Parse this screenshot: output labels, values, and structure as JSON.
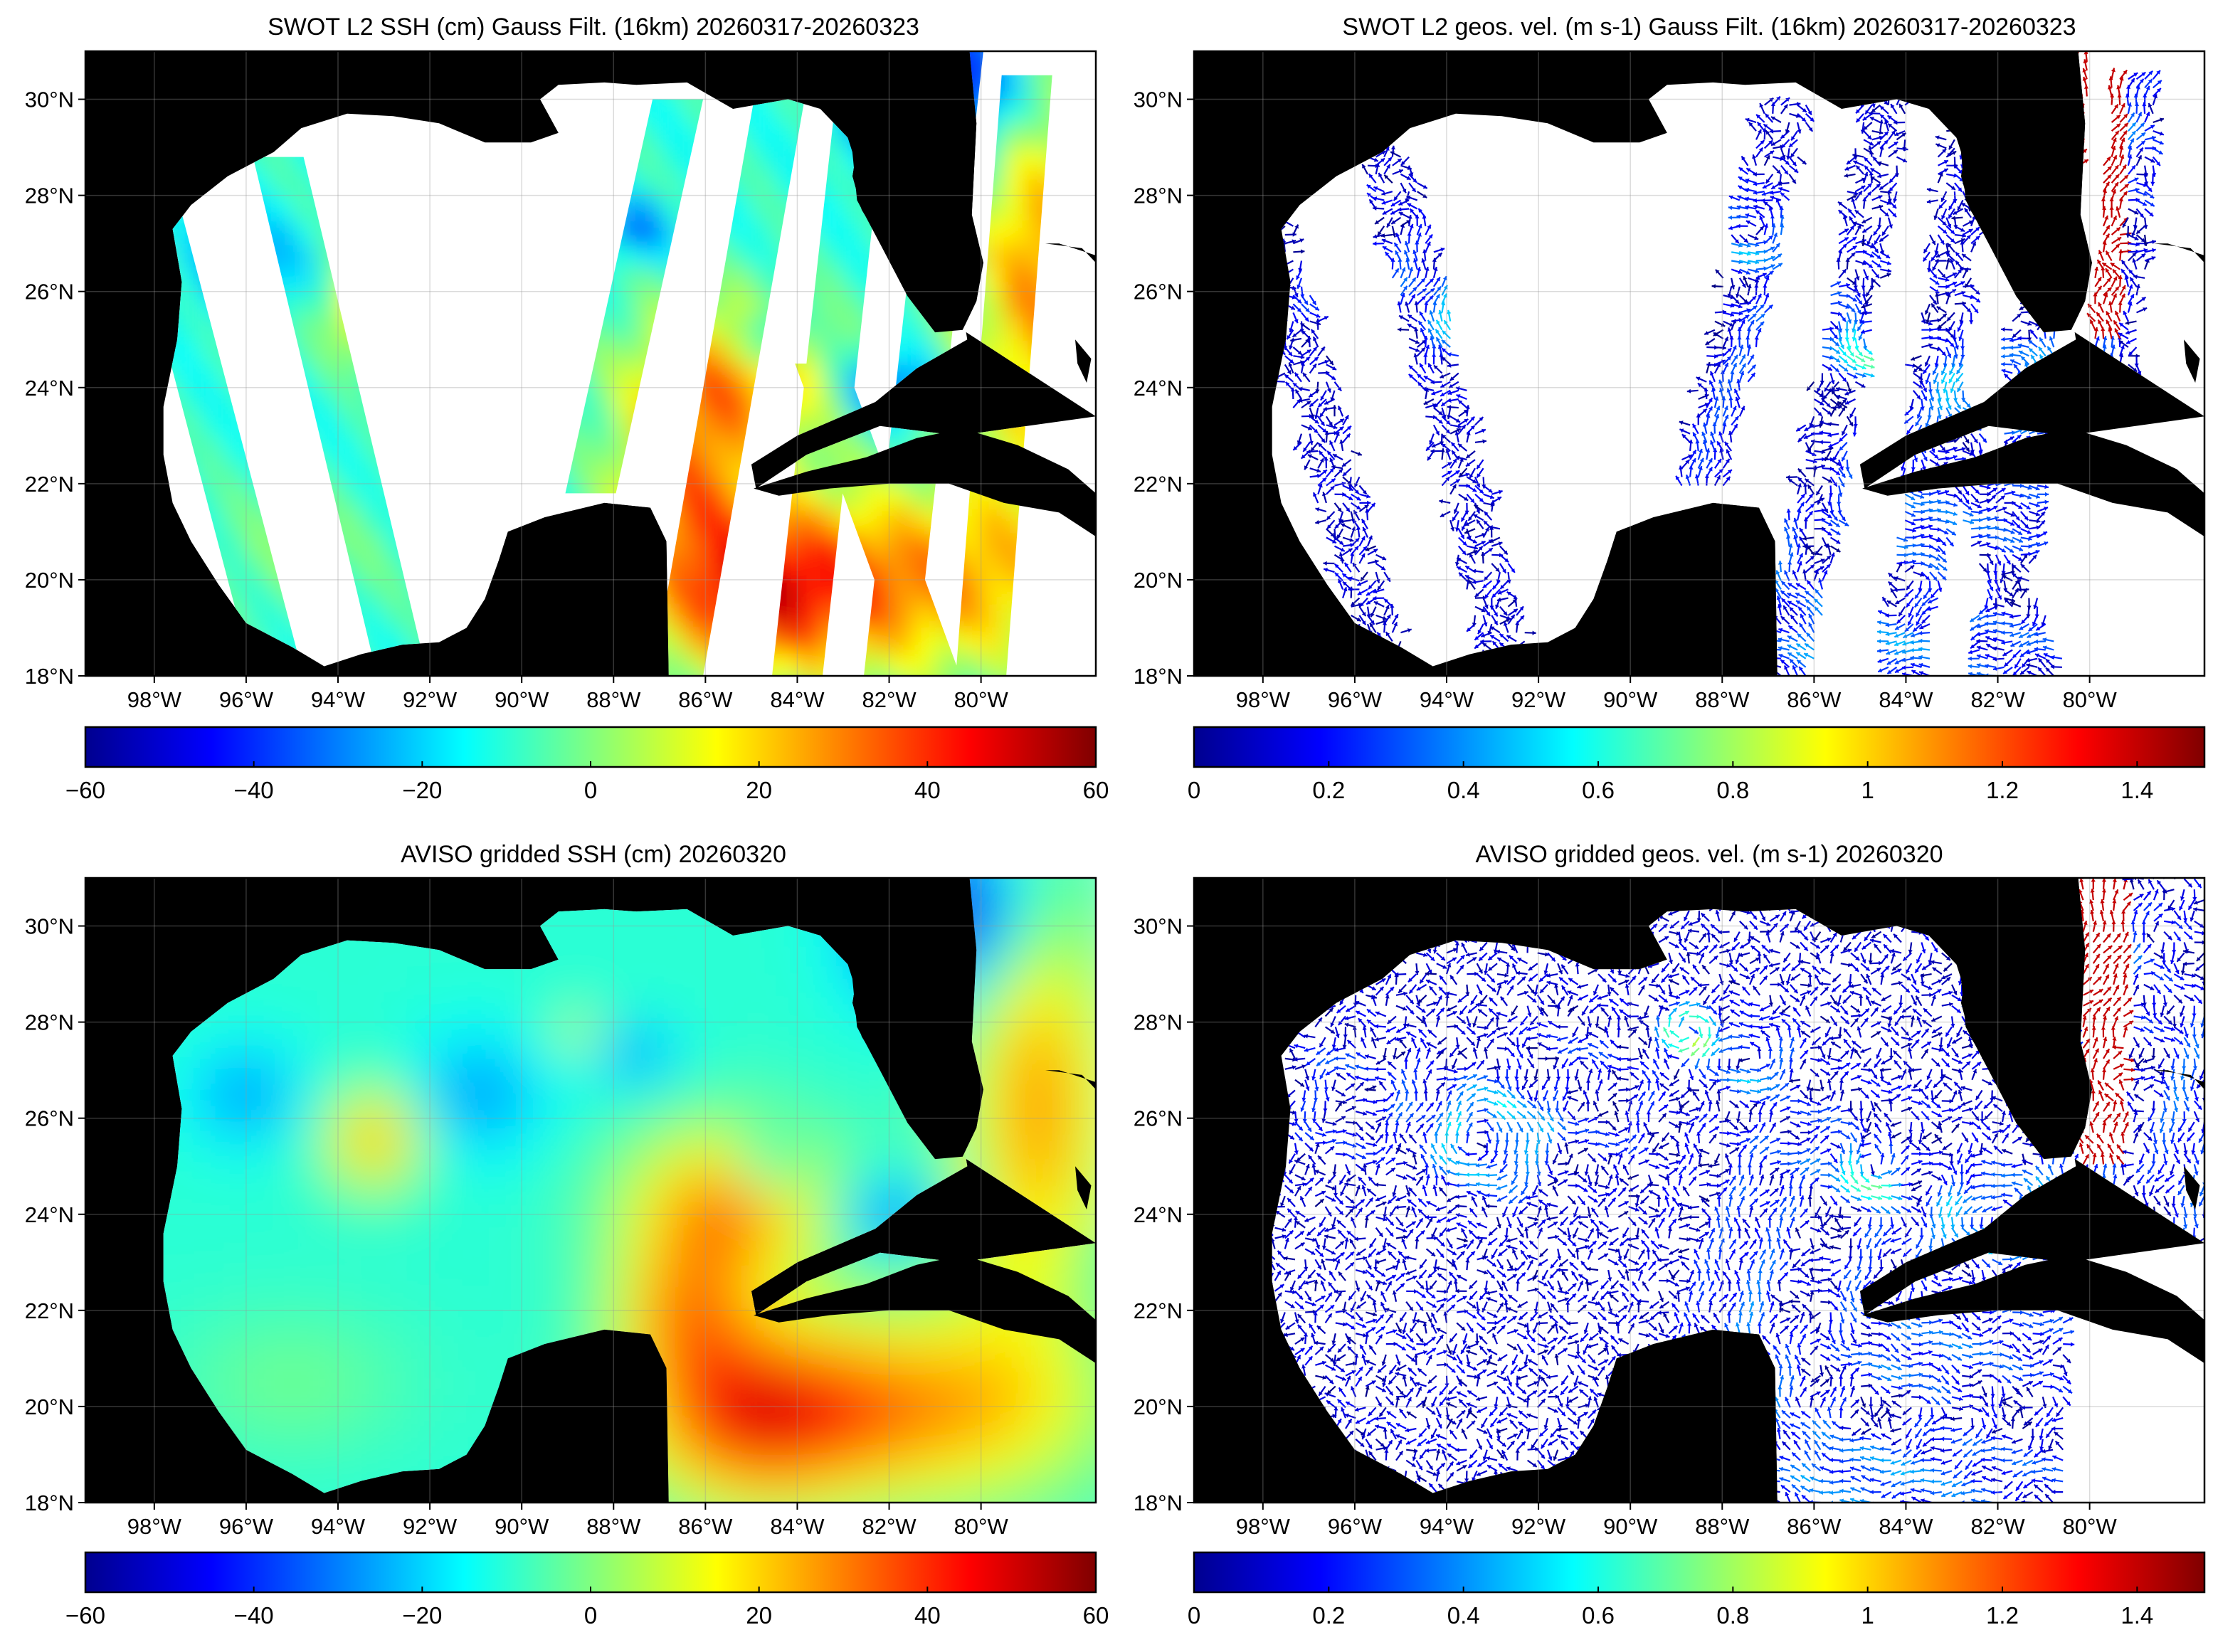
{
  "figure": {
    "panels": [
      {
        "id": "swot-ssh",
        "title": "SWOT L2 SSH (cm) Gauss Filt. (16km) 20260317-20260323",
        "kind": "ssh-swaths",
        "colorbar": {
          "min": -60,
          "max": 60,
          "ticks": [
            "−60",
            "−40",
            "−20",
            "0",
            "20",
            "40",
            "60"
          ]
        }
      },
      {
        "id": "swot-vel",
        "title": "SWOT L2 geos. vel. (m s-1) Gauss Filt. (16km) 20260317-20260323",
        "kind": "vel-swaths",
        "colorbar": {
          "min": 0,
          "max": 1.5,
          "ticks": [
            "0",
            "0.2",
            "0.4",
            "0.6",
            "0.8",
            "1",
            "1.2",
            "1.4"
          ]
        }
      },
      {
        "id": "aviso-ssh",
        "title": "AVISO gridded SSH (cm) 20260320",
        "kind": "ssh-grid",
        "colorbar": {
          "min": -60,
          "max": 60,
          "ticks": [
            "−60",
            "−40",
            "−20",
            "0",
            "20",
            "40",
            "60"
          ]
        }
      },
      {
        "id": "aviso-vel",
        "title": "AVISO gridded geos. vel. (m s-1)  20260320",
        "kind": "vel-grid",
        "colorbar": {
          "min": 0,
          "max": 1.5,
          "ticks": [
            "0",
            "0.2",
            "0.4",
            "0.6",
            "0.8",
            "1",
            "1.2",
            "1.4"
          ]
        }
      }
    ],
    "map": {
      "lon_range": [
        -99.5,
        -77.5
      ],
      "lat_range": [
        18,
        31
      ],
      "lat_ticks": [
        30,
        28,
        26,
        24,
        22,
        20,
        18
      ],
      "lat_tick_labels": [
        "30°N",
        "28°N",
        "26°N",
        "24°N",
        "22°N",
        "20°N",
        "18°N"
      ],
      "lon_ticks": [
        -98,
        -96,
        -94,
        -92,
        -90,
        -88,
        -86,
        -84,
        -82,
        -80
      ],
      "lon_tick_labels": [
        "98°W",
        "96°W",
        "94°W",
        "92°W",
        "90°W",
        "88°W",
        "86°W",
        "84°W",
        "82°W",
        "80°W"
      ],
      "grid": true,
      "land_color": "#000000",
      "ocean_missing_color": "#ffffff",
      "colormap": "jet"
    }
  }
}
